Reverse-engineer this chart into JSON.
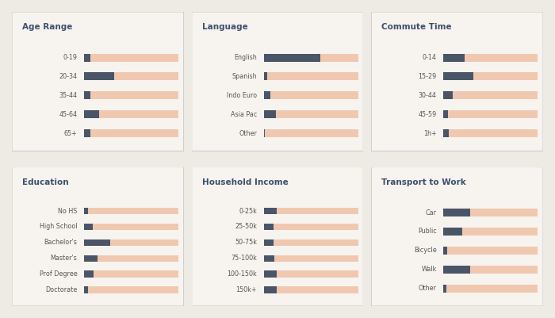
{
  "background": "#eeeae4",
  "panel_color": "#f7f4f0",
  "bar_color": "#4a5568",
  "bg_bar_color": "#f0c8b0",
  "title_color": "#3d4f6b",
  "label_color": "#555555",
  "panels": [
    {
      "title": "Age Range",
      "categories": [
        "0-19",
        "20-34",
        "35-44",
        "45-64",
        "65+"
      ],
      "values": [
        0.07,
        0.32,
        0.07,
        0.16,
        0.07
      ]
    },
    {
      "title": "Language",
      "categories": [
        "English",
        "Spanish",
        "Indo Euro",
        "Asia Pac",
        "Other"
      ],
      "values": [
        0.6,
        0.04,
        0.07,
        0.13,
        0.01
      ]
    },
    {
      "title": "Commute Time",
      "categories": [
        "0-14",
        "15-29",
        "30-44",
        "45-59",
        "1h+"
      ],
      "values": [
        0.22,
        0.32,
        0.1,
        0.05,
        0.06
      ]
    },
    {
      "title": "Education",
      "categories": [
        "No HS",
        "High School",
        "Bachelor's",
        "Master's",
        "Prof Degree",
        "Doctorate"
      ],
      "values": [
        0.04,
        0.09,
        0.28,
        0.14,
        0.1,
        0.04
      ]
    },
    {
      "title": "Household Income",
      "categories": [
        "0-25k",
        "25-50k",
        "50-75k",
        "75-100k",
        "100-150k",
        "150k+"
      ],
      "values": [
        0.14,
        0.1,
        0.1,
        0.11,
        0.14,
        0.14
      ]
    },
    {
      "title": "Transport to Work",
      "categories": [
        "Car",
        "Public",
        "Bicycle",
        "Walk",
        "Other"
      ],
      "values": [
        0.28,
        0.2,
        0.04,
        0.28,
        0.03
      ]
    }
  ]
}
